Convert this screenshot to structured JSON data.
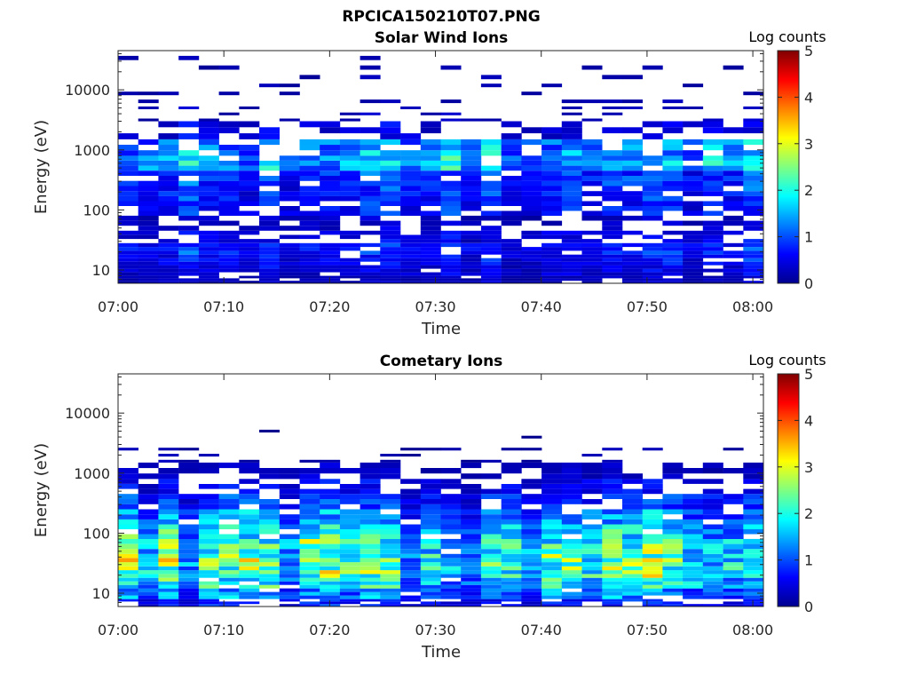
{
  "figure": {
    "title": "RPCICA150210T07.PNG"
  },
  "chart_data": [
    {
      "type": "heatmap",
      "title": "Solar Wind Ions",
      "xlabel": "Time",
      "ylabel": "Energy (eV)",
      "x_ticks": [
        "07:00",
        "07:10",
        "07:20",
        "07:30",
        "07:40",
        "07:50",
        "08:00"
      ],
      "x_range": [
        "07:00",
        "08:01"
      ],
      "y_scale": "log",
      "y_ticks": [
        "10",
        "100",
        "1000",
        "10000"
      ],
      "y_range": [
        6,
        45000
      ],
      "colorbar": {
        "label": "Log counts",
        "ticks": [
          "0",
          "1",
          "2",
          "3",
          "4",
          "5"
        ],
        "range": [
          0,
          5
        ],
        "colormap": "jet"
      },
      "bands": [
        {
          "emin": 6,
          "emax": 8,
          "level": 0.3,
          "density": 0.85
        },
        {
          "emin": 8,
          "emax": 12,
          "level": 0.45,
          "density": 0.95
        },
        {
          "emin": 12,
          "emax": 18,
          "level": 0.6,
          "density": 0.95
        },
        {
          "emin": 18,
          "emax": 28,
          "level": 0.75,
          "density": 0.9
        },
        {
          "emin": 28,
          "emax": 45,
          "level": 0.5,
          "density": 0.7
        },
        {
          "emin": 45,
          "emax": 80,
          "level": 0.35,
          "density": 0.55
        },
        {
          "emin": 80,
          "emax": 140,
          "level": 0.7,
          "density": 0.75
        },
        {
          "emin": 140,
          "emax": 250,
          "level": 0.75,
          "density": 0.9
        },
        {
          "emin": 250,
          "emax": 450,
          "level": 0.9,
          "density": 0.9
        },
        {
          "emin": 450,
          "emax": 800,
          "level": 1.5,
          "density": 0.95
        },
        {
          "emin": 800,
          "emax": 1500,
          "level": 1.3,
          "density": 0.75
        },
        {
          "emin": 1500,
          "emax": 3000,
          "level": 0.45,
          "density": 0.45
        },
        {
          "emin": 3000,
          "emax": 6000,
          "level": 0.25,
          "density": 0.3
        },
        {
          "emin": 6000,
          "emax": 15000,
          "level": 0.2,
          "density": 0.22
        },
        {
          "emin": 15000,
          "emax": 45000,
          "level": 0.2,
          "density": 0.18
        }
      ]
    },
    {
      "type": "heatmap",
      "title": "Cometary Ions",
      "xlabel": "Time",
      "ylabel": "Energy (eV)",
      "x_ticks": [
        "07:00",
        "07:10",
        "07:20",
        "07:30",
        "07:40",
        "07:50",
        "08:00"
      ],
      "x_range": [
        "07:00",
        "08:01"
      ],
      "y_scale": "log",
      "y_ticks": [
        "10",
        "100",
        "1000",
        "10000"
      ],
      "y_range": [
        6,
        45000
      ],
      "colorbar": {
        "label": "Log counts",
        "ticks": [
          "0",
          "1",
          "2",
          "3",
          "4",
          "5"
        ],
        "range": [
          0,
          5
        ],
        "colormap": "jet"
      },
      "bands": [
        {
          "emin": 6,
          "emax": 8,
          "level": 0.6,
          "density": 0.8
        },
        {
          "emin": 8,
          "emax": 12,
          "level": 1.1,
          "density": 0.95
        },
        {
          "emin": 12,
          "emax": 18,
          "level": 1.6,
          "density": 0.98
        },
        {
          "emin": 18,
          "emax": 28,
          "level": 2.0,
          "density": 0.98
        },
        {
          "emin": 28,
          "emax": 45,
          "level": 2.0,
          "density": 0.98
        },
        {
          "emin": 45,
          "emax": 80,
          "level": 1.8,
          "density": 0.98
        },
        {
          "emin": 80,
          "emax": 140,
          "level": 1.5,
          "density": 0.95
        },
        {
          "emin": 140,
          "emax": 250,
          "level": 1.1,
          "density": 0.9
        },
        {
          "emin": 250,
          "emax": 450,
          "level": 0.75,
          "density": 0.85
        },
        {
          "emin": 450,
          "emax": 800,
          "level": 0.5,
          "density": 0.65
        },
        {
          "emin": 800,
          "emax": 1500,
          "level": 0.3,
          "density": 0.5
        },
        {
          "emin": 1500,
          "emax": 3000,
          "level": 0.2,
          "density": 0.3
        },
        {
          "emin": 3000,
          "emax": 6000,
          "level": 0.1,
          "density": 0.02
        },
        {
          "emin": 6000,
          "emax": 15000,
          "level": 0.1,
          "density": 0.01
        },
        {
          "emin": 15000,
          "emax": 45000,
          "level": 0.1,
          "density": 0.01
        }
      ]
    }
  ]
}
